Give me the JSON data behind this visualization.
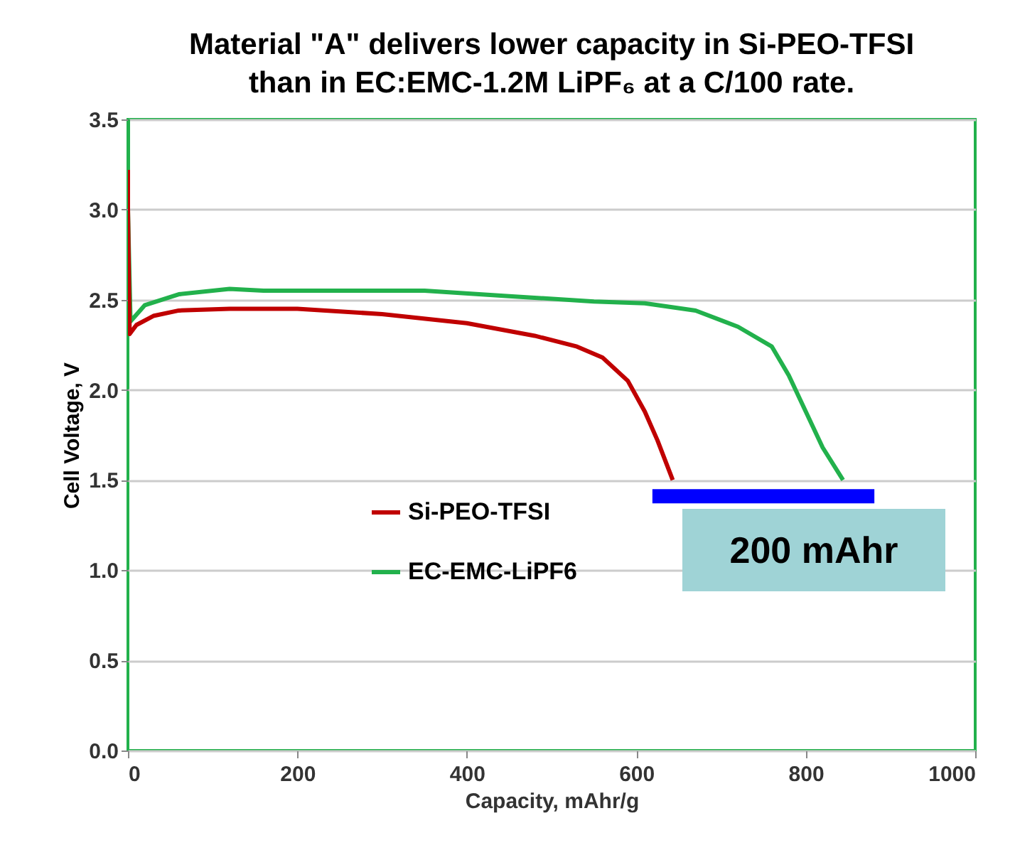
{
  "chart_data": {
    "type": "line",
    "title": "Material \"A\" delivers lower capacity in Si-PEO-TFSI\nthan in EC:EMC-1.2M LiPF₆ at a C/100 rate.",
    "xlabel": "Capacity, mAhr/g",
    "ylabel": "Cell Voltage, V",
    "xlim": [
      0,
      1000
    ],
    "xticks": [
      0,
      200,
      400,
      600,
      800,
      1000
    ],
    "ylim": [
      0,
      3.5
    ],
    "yticks": [
      {
        "value": 0,
        "label": "0.0"
      },
      {
        "value": 0.5,
        "label": "0.5"
      },
      {
        "value": 1,
        "label": "1.0"
      },
      {
        "value": 1.5,
        "label": "1.5"
      },
      {
        "value": 2,
        "label": "2.0"
      },
      {
        "value": 2.5,
        "label": "2.5"
      },
      {
        "value": 3,
        "label": "3.0"
      },
      {
        "value": 3.5,
        "label": "3.5"
      }
    ],
    "grid": "y",
    "legend": "bottom",
    "line_style": "solid",
    "annotations": [
      "200 mAhr"
    ],
    "series": [
      {
        "name": "Si-PEO-TFSI",
        "color": "#c00000",
        "x": [
          0,
          0,
          2,
          10,
          30,
          60,
          120,
          200,
          300,
          400,
          480,
          530,
          560,
          590,
          610,
          625,
          643
        ],
        "values": [
          3.22,
          3.0,
          2.31,
          2.36,
          2.41,
          2.44,
          2.45,
          2.45,
          2.42,
          2.37,
          2.3,
          2.24,
          2.18,
          2.05,
          1.88,
          1.72,
          1.5
        ]
      },
      {
        "name": "EC-EMC-LiPF6",
        "color": "#22b14c",
        "x": [
          0,
          0,
          3,
          20,
          60,
          120,
          160,
          250,
          350,
          450,
          550,
          610,
          670,
          720,
          760,
          780,
          800,
          820,
          844
        ],
        "values": [
          3.5,
          3.0,
          2.38,
          2.47,
          2.53,
          2.56,
          2.55,
          2.55,
          2.55,
          2.52,
          2.49,
          2.48,
          2.44,
          2.35,
          2.24,
          2.08,
          1.88,
          1.68,
          1.5
        ]
      },
      {
        "color": "#0000ff",
        "x": [
          619,
          881
        ],
        "values": [
          1.41,
          1.41
        ]
      }
    ]
  }
}
